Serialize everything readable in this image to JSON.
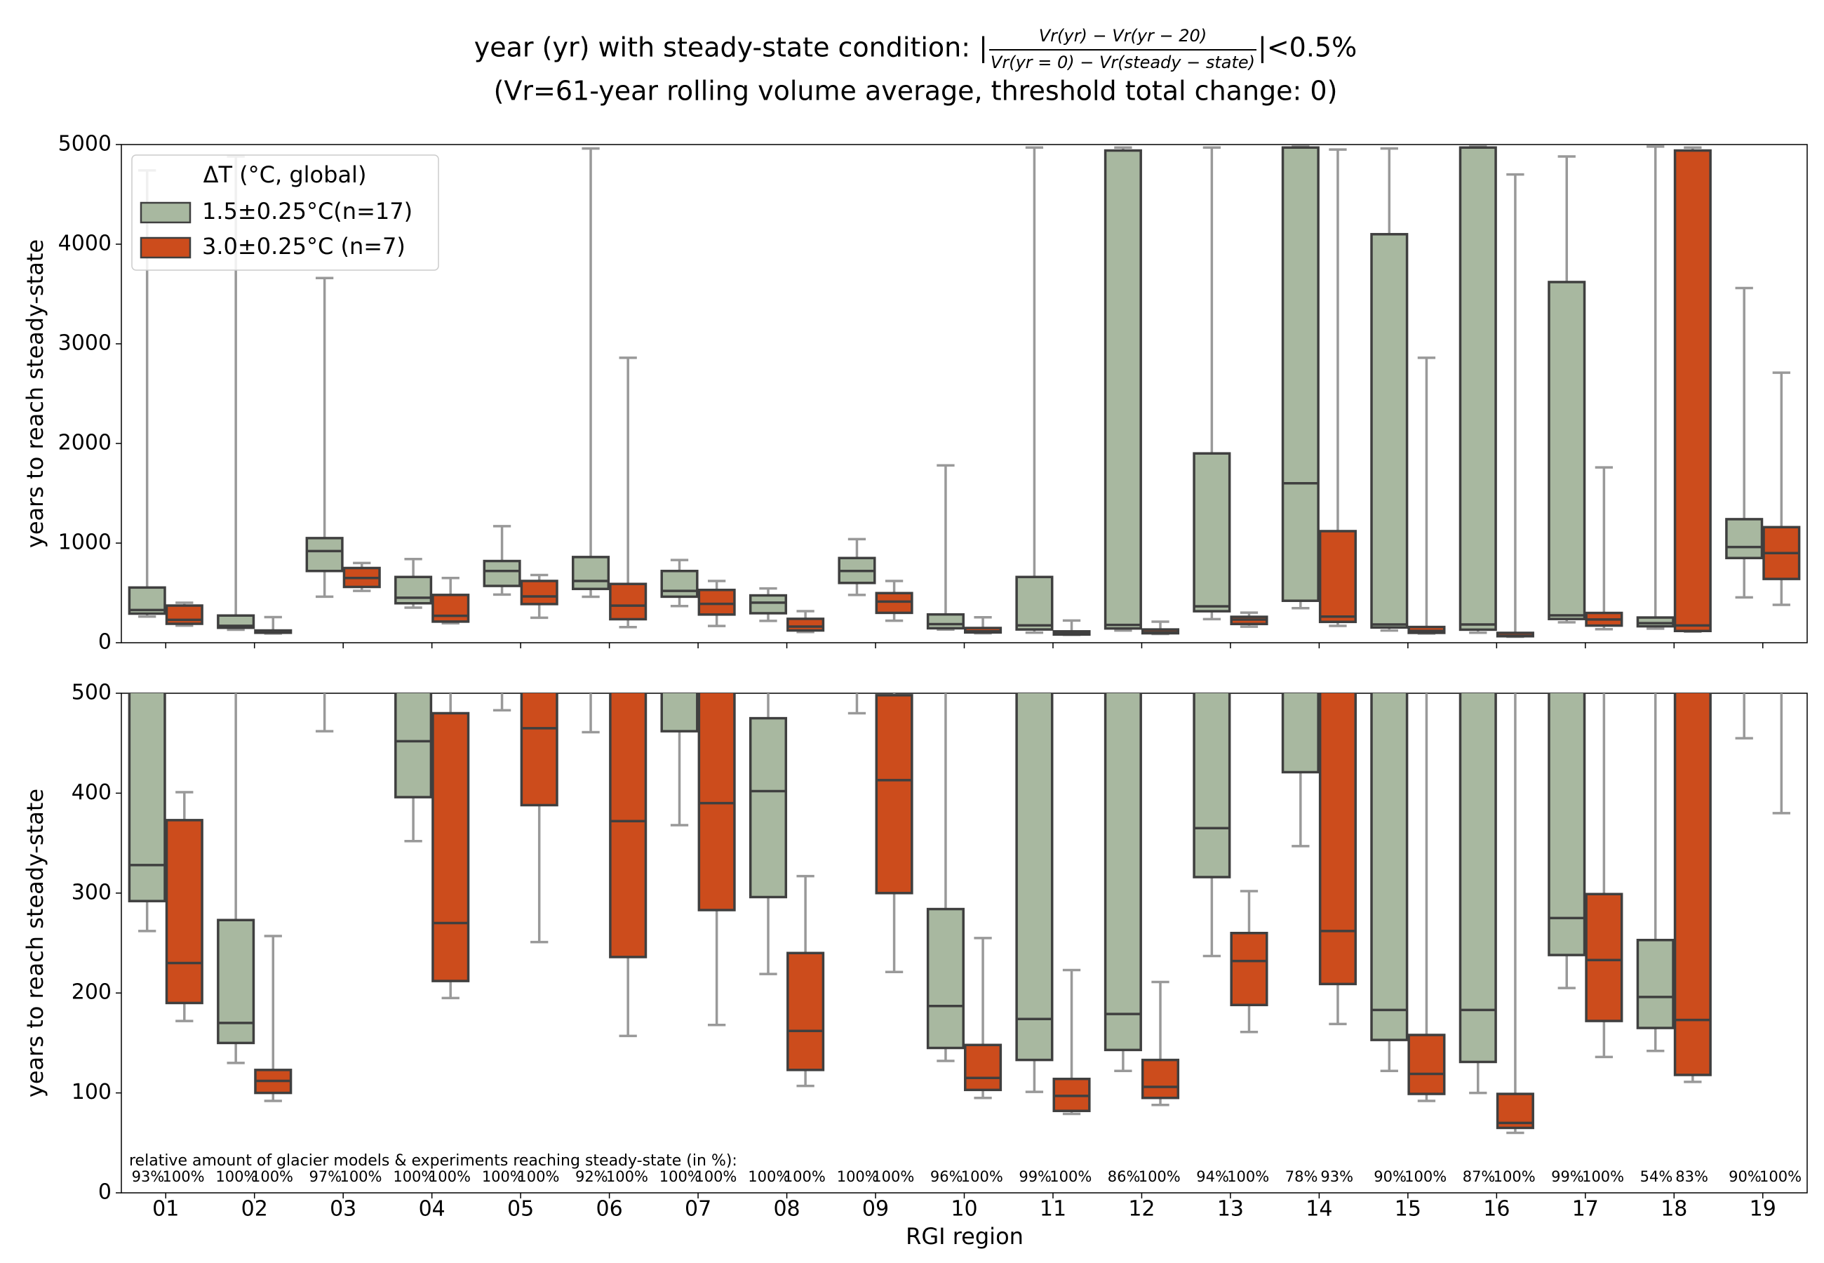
{
  "chart_data": {
    "type": "boxplot",
    "title_prefix": "year (yr) with steady-state condition:  |",
    "title_numerator": "Vr(yr) − Vr(yr − 20)",
    "title_denominator": "Vr(yr = 0) − Vr(steady − state)",
    "title_suffix": "|<0.5%",
    "subtitle": "(Vr=61-year rolling volume average, threshold total change: 0)",
    "x_label": "RGI region",
    "y_label": "years to reach steady-state",
    "legend_title": "ΔT (°C, global)",
    "legend_position": "upper left",
    "annotation": "relative amount of glacier models & experiments reaching steady-state (in %):",
    "categories": [
      "01",
      "02",
      "03",
      "04",
      "05",
      "06",
      "07",
      "08",
      "09",
      "10",
      "11",
      "12",
      "13",
      "14",
      "15",
      "16",
      "17",
      "18",
      "19"
    ],
    "panels": [
      {
        "ylim": [
          0,
          5000
        ],
        "yticks": [
          0,
          1000,
          2000,
          3000,
          4000,
          5000
        ]
      },
      {
        "ylim": [
          0,
          500
        ],
        "yticks": [
          0,
          100,
          200,
          300,
          400,
          500
        ]
      }
    ],
    "series": [
      {
        "name": "1.5±0.25°C(n=17)",
        "color": "#a8b8a0",
        "low": [
          262,
          130,
          462,
          352,
          483,
          461,
          368,
          219,
          480,
          132,
          101,
          122,
          237,
          347,
          122,
          100,
          205,
          142,
          455
        ],
        "q1": [
          292,
          150,
          720,
          396,
          570,
          540,
          462,
          296,
          600,
          145,
          133,
          143,
          316,
          421,
          153,
          131,
          238,
          165,
          850
        ],
        "median": [
          328,
          170,
          920,
          452,
          720,
          620,
          520,
          402,
          720,
          187,
          174,
          179,
          365,
          1600,
          183,
          183,
          275,
          196,
          960
        ],
        "q3": [
          554,
          273,
          1050,
          660,
          820,
          860,
          720,
          475,
          850,
          284,
          660,
          4940,
          1900,
          4970,
          4100,
          4970,
          3620,
          253,
          1240
        ],
        "high": [
          4740,
          4880,
          3660,
          840,
          1170,
          4960,
          830,
          545,
          1040,
          1780,
          4970,
          4970,
          4970,
          4980,
          4960,
          4980,
          4880,
          4980,
          3560
        ],
        "reach_labels": [
          "93%",
          "100%",
          "97%",
          "100%",
          "100%",
          "92%",
          "100%",
          "100%",
          "100%",
          "96%",
          "99%",
          "86%",
          "94%",
          "78%",
          "90%",
          "87%",
          "99%",
          "54%",
          "90%"
        ]
      },
      {
        "name": "3.0±0.25°C (n=7)",
        "color": "#cc4c1c",
        "low": [
          172,
          92,
          520,
          195,
          251,
          157,
          168,
          107,
          221,
          95,
          79,
          88,
          161,
          169,
          92,
          60,
          136,
          111,
          380
        ],
        "q1": [
          190,
          100,
          560,
          212,
          388,
          236,
          283,
          123,
          300,
          103,
          82,
          95,
          188,
          209,
          99,
          65,
          172,
          118,
          640
        ],
        "median": [
          230,
          112,
          650,
          270,
          465,
          372,
          390,
          162,
          413,
          115,
          97,
          106,
          232,
          262,
          119,
          70,
          233,
          173,
          900
        ],
        "q3": [
          373,
          123,
          750,
          480,
          620,
          590,
          530,
          240,
          498,
          148,
          114,
          133,
          260,
          1120,
          158,
          99,
          299,
          4940,
          1160
        ],
        "high": [
          401,
          257,
          800,
          650,
          680,
          2860,
          620,
          317,
          620,
          255,
          223,
          211,
          302,
          4950,
          2860,
          4700,
          1760,
          4970,
          2710
        ],
        "reach_labels": [
          "100%",
          "100%",
          "100%",
          "100%",
          "100%",
          "100%",
          "100%",
          "100%",
          "100%",
          "100%",
          "100%",
          "100%",
          "100%",
          "93%",
          "100%",
          "100%",
          "100%",
          "83%",
          "100%"
        ]
      }
    ]
  }
}
